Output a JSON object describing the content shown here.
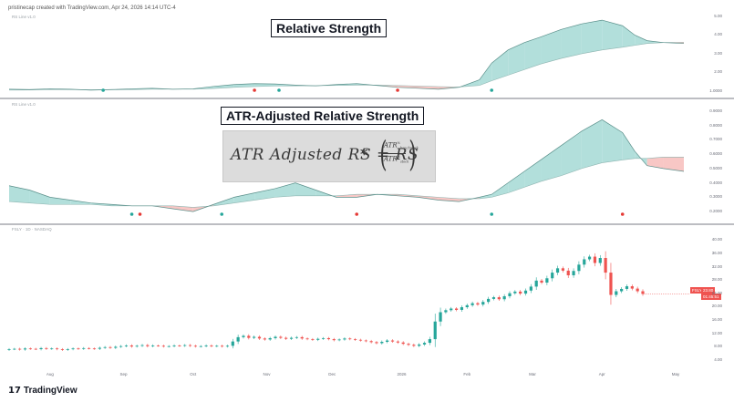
{
  "header": {
    "text": "pristinecap created with TradingView.com, Apr 24, 2026 14:14 UTC-4"
  },
  "panes": {
    "top_label": "RS Line v1.0",
    "mid_label": "RS Line v1.0",
    "bottom_label": "FSLY · 1D · NASDAQ"
  },
  "annotations": {
    "title1": "Relative Strength",
    "title2": "ATR-Adjusted Relative Strength",
    "formula_main": "ATR Adjusted RS = RS",
    "formula_times": "*",
    "formula_num": "ATR",
    "formula_num_sup": "%",
    "formula_num_sub": "benchmark",
    "formula_den": "ATR",
    "formula_den_sup": "%",
    "formula_den_sub": "stock"
  },
  "price_tag": {
    "symbol": "FSLY",
    "price": "23.80",
    "countdown": "01:45:51"
  },
  "footer": {
    "brand": "TradingView"
  },
  "colors": {
    "up": "#26a69a",
    "down": "#ef5350",
    "fill_up": "#b2dfdb",
    "fill_down": "#f8c7c5",
    "line": "#5a8f8a",
    "dot_up": "#26a69a",
    "dot_down": "#e53935"
  },
  "chart_data": [
    {
      "type": "area",
      "title": "Relative Strength",
      "yticks": [
        "5.00",
        "4.00",
        "3.00",
        "2.00",
        "1.0000"
      ],
      "ylim": [
        0.8,
        5.0
      ],
      "x": [
        0,
        5,
        10,
        15,
        20,
        25,
        30,
        35,
        40,
        45,
        50,
        55,
        60,
        65,
        70,
        75,
        80,
        85,
        90,
        95,
        100,
        105,
        110,
        115,
        118,
        122,
        126,
        130,
        135,
        140,
        145,
        150,
        153,
        156,
        160,
        165
      ],
      "rs": [
        1.1,
        1.08,
        1.12,
        1.1,
        1.05,
        1.08,
        1.12,
        1.15,
        1.1,
        1.12,
        1.25,
        1.35,
        1.4,
        1.38,
        1.32,
        1.28,
        1.35,
        1.4,
        1.3,
        1.2,
        1.15,
        1.1,
        1.2,
        1.6,
        2.5,
        3.2,
        3.6,
        3.9,
        4.3,
        4.6,
        4.8,
        4.5,
        4.0,
        3.7,
        3.6,
        3.55
      ],
      "ma": [
        1.05,
        1.06,
        1.08,
        1.08,
        1.07,
        1.07,
        1.08,
        1.1,
        1.1,
        1.1,
        1.14,
        1.2,
        1.24,
        1.27,
        1.28,
        1.29,
        1.3,
        1.32,
        1.32,
        1.3,
        1.27,
        1.24,
        1.22,
        1.3,
        1.55,
        1.85,
        2.15,
        2.45,
        2.75,
        3.0,
        3.2,
        3.35,
        3.45,
        3.55,
        3.6,
        3.62
      ],
      "dots": [
        {
          "x": 23,
          "dir": "up"
        },
        {
          "x": 60,
          "dir": "down"
        },
        {
          "x": 66,
          "dir": "up"
        },
        {
          "x": 95,
          "dir": "down"
        },
        {
          "x": 118,
          "dir": "up"
        }
      ]
    },
    {
      "type": "area",
      "title": "ATR-Adjusted Relative Strength",
      "yticks": [
        "0.9000",
        "0.8000",
        "0.7000",
        "0.6000",
        "0.5000",
        "0.4000",
        "0.3000",
        "0.2000"
      ],
      "ylim": [
        0.15,
        0.95
      ],
      "x": [
        0,
        5,
        10,
        15,
        20,
        25,
        30,
        35,
        40,
        45,
        50,
        55,
        60,
        65,
        70,
        75,
        80,
        85,
        90,
        95,
        100,
        105,
        110,
        115,
        118,
        122,
        126,
        130,
        135,
        140,
        145,
        150,
        153,
        156,
        160,
        165
      ],
      "rs": [
        0.38,
        0.35,
        0.3,
        0.28,
        0.26,
        0.25,
        0.24,
        0.24,
        0.22,
        0.2,
        0.25,
        0.3,
        0.33,
        0.36,
        0.4,
        0.35,
        0.3,
        0.3,
        0.32,
        0.31,
        0.3,
        0.28,
        0.27,
        0.3,
        0.32,
        0.4,
        0.48,
        0.56,
        0.66,
        0.76,
        0.84,
        0.75,
        0.62,
        0.52,
        0.5,
        0.48
      ],
      "ma": [
        0.27,
        0.26,
        0.25,
        0.25,
        0.25,
        0.24,
        0.24,
        0.24,
        0.24,
        0.23,
        0.24,
        0.26,
        0.28,
        0.3,
        0.31,
        0.31,
        0.31,
        0.32,
        0.32,
        0.32,
        0.31,
        0.3,
        0.29,
        0.29,
        0.3,
        0.33,
        0.37,
        0.41,
        0.45,
        0.5,
        0.54,
        0.56,
        0.57,
        0.57,
        0.58,
        0.58
      ],
      "dots": [
        {
          "x": 30,
          "dir": "up"
        },
        {
          "x": 32,
          "dir": "down"
        },
        {
          "x": 52,
          "dir": "up"
        },
        {
          "x": 85,
          "dir": "down"
        },
        {
          "x": 118,
          "dir": "up"
        },
        {
          "x": 150,
          "dir": "down"
        }
      ]
    },
    {
      "type": "candlestick",
      "title": "FSLY · 1D · NASDAQ",
      "yticks": [
        "40.00",
        "36.00",
        "32.00",
        "28.00",
        "24.00",
        "20.00",
        "16.00",
        "12.00",
        "8.00",
        "4.00"
      ],
      "ylim": [
        2,
        42
      ],
      "xticks": [
        {
          "x": 10,
          "label": "Aug"
        },
        {
          "x": 28,
          "label": "Sep"
        },
        {
          "x": 45,
          "label": "Oct"
        },
        {
          "x": 63,
          "label": "Nov"
        },
        {
          "x": 79,
          "label": "Dec"
        },
        {
          "x": 96,
          "label": "2026"
        },
        {
          "x": 112,
          "label": "Feb"
        },
        {
          "x": 128,
          "label": "Mar"
        },
        {
          "x": 145,
          "label": "Apr"
        },
        {
          "x": 163,
          "label": "May"
        }
      ],
      "closes": [
        7.2,
        7.3,
        7.1,
        7.4,
        7.3,
        7.2,
        7.5,
        7.3,
        7.4,
        7.2,
        7.0,
        7.2,
        7.4,
        7.3,
        7.5,
        7.4,
        7.3,
        7.6,
        7.8,
        7.6,
        7.9,
        8.1,
        8.3,
        8.0,
        8.2,
        8.4,
        8.1,
        8.3,
        8.2,
        8.0,
        8.1,
        8.3,
        8.2,
        8.4,
        8.2,
        8.0,
        8.1,
        8.3,
        8.1,
        8.2,
        8.0,
        8.2,
        9.5,
        10.8,
        11.2,
        10.6,
        10.9,
        10.4,
        10.1,
        10.5,
        10.9,
        10.6,
        10.3,
        10.6,
        10.8,
        10.4,
        10.2,
        10.0,
        10.3,
        10.5,
        10.2,
        9.9,
        10.1,
        10.4,
        10.2,
        10.0,
        9.8,
        9.6,
        9.3,
        9.0,
        9.4,
        9.8,
        9.5,
        9.2,
        8.8,
        8.5,
        8.2,
        8.6,
        9.1,
        10.2,
        15.5,
        18.3,
        18.9,
        19.4,
        19.0,
        19.8,
        20.4,
        21.0,
        20.6,
        21.4,
        22.3,
        22.8,
        22.2,
        23.1,
        24.0,
        24.5,
        23.9,
        24.8,
        26.0,
        27.8,
        27.2,
        28.5,
        30.2,
        31.5,
        30.8,
        29.4,
        30.7,
        32.6,
        34.2,
        35.0,
        33.1,
        34.6,
        30.2,
        23.5,
        24.6,
        25.3,
        26.1,
        25.4,
        24.6,
        23.8
      ]
    }
  ]
}
